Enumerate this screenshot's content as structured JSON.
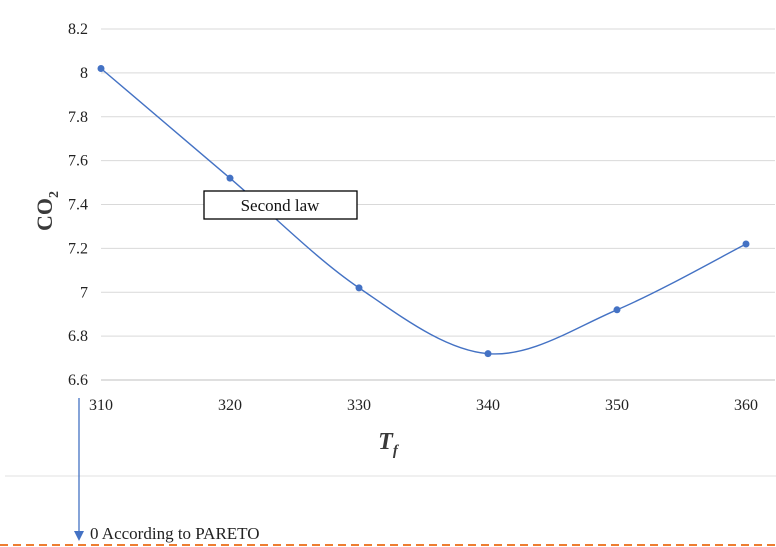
{
  "chart_data": {
    "type": "line",
    "xlabel": "T",
    "xlabel_sub": "f",
    "ylabel": "CO",
    "ylabel_sub": "2",
    "x": [
      310,
      320,
      330,
      340,
      350,
      360
    ],
    "series": [
      {
        "values": [
          8.02,
          7.52,
          7.02,
          6.72,
          6.92,
          7.22
        ],
        "color": "#4472c4"
      }
    ],
    "xlim": [
      310,
      360
    ],
    "ylim": [
      6.6,
      8.2
    ],
    "xticks": [
      "310",
      "320",
      "330",
      "340",
      "350",
      "360"
    ],
    "yticks": [
      "6.6",
      "6.8",
      "7",
      "7.2",
      "7.4",
      "7.6",
      "7.8",
      "8",
      "8.2"
    ],
    "grid": "horizontal",
    "smooth": true,
    "annotation": "Second law"
  },
  "note": {
    "text": "0 According to PARETO",
    "arrow_color": "#4472c4",
    "dashed_line_color": "#ed7d31"
  },
  "colors": {
    "grid": "#d9d9d9",
    "series": "#4472c4"
  }
}
